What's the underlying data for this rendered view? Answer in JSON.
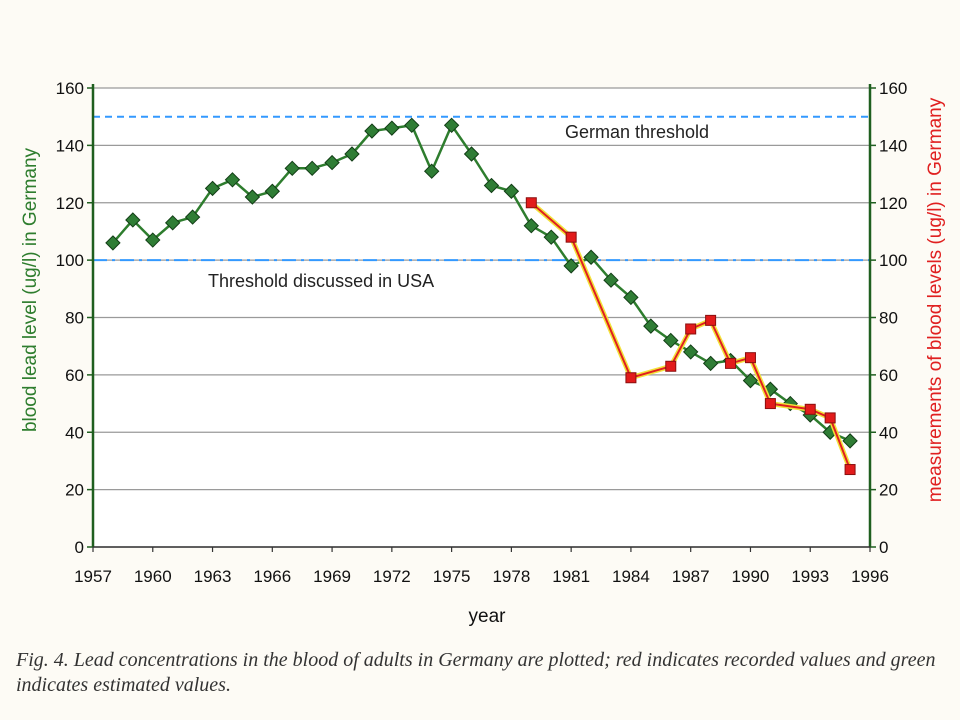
{
  "chart_data": {
    "type": "line",
    "xlabel": "year",
    "ylabel_left": "blood lead level (ug/l) in Germany",
    "ylabel_right": "measurements of blood levels (ug/l) in Germany",
    "xlim": [
      1957,
      1996
    ],
    "ylim": [
      0,
      160
    ],
    "xticks": [
      1957,
      1960,
      1963,
      1966,
      1969,
      1972,
      1975,
      1978,
      1981,
      1984,
      1987,
      1990,
      1993,
      1996
    ],
    "yticks": [
      0,
      20,
      40,
      60,
      80,
      100,
      120,
      140,
      160
    ],
    "grid": true,
    "series": [
      {
        "color": "#2e7d2e",
        "marker": "diamond",
        "points": [
          [
            1958,
            106
          ],
          [
            1959,
            114
          ],
          [
            1960,
            107
          ],
          [
            1961,
            113
          ],
          [
            1962,
            115
          ],
          [
            1963,
            125
          ],
          [
            1964,
            128
          ],
          [
            1965,
            122
          ],
          [
            1966,
            124
          ],
          [
            1967,
            132
          ],
          [
            1968,
            132
          ],
          [
            1969,
            134
          ],
          [
            1970,
            137
          ],
          [
            1971,
            145
          ],
          [
            1972,
            146
          ],
          [
            1973,
            147
          ],
          [
            1974,
            131
          ],
          [
            1975,
            147
          ],
          [
            1976,
            137
          ],
          [
            1977,
            126
          ],
          [
            1978,
            124
          ],
          [
            1979,
            112
          ],
          [
            1980,
            108
          ],
          [
            1981,
            98
          ],
          [
            1982,
            101
          ],
          [
            1983,
            93
          ],
          [
            1984,
            87
          ],
          [
            1985,
            77
          ],
          [
            1986,
            72
          ],
          [
            1987,
            68
          ],
          [
            1988,
            64
          ],
          [
            1989,
            65
          ],
          [
            1990,
            58
          ],
          [
            1991,
            55
          ],
          [
            1992,
            50
          ],
          [
            1993,
            46
          ],
          [
            1994,
            40
          ],
          [
            1995,
            37
          ]
        ]
      },
      {
        "color": "#e02020",
        "marker": "square",
        "points": [
          [
            1979,
            120
          ],
          [
            1981,
            108
          ],
          [
            1984,
            59
          ],
          [
            1986,
            63
          ],
          [
            1987,
            76
          ],
          [
            1988,
            79
          ],
          [
            1989,
            64
          ],
          [
            1990,
            66
          ],
          [
            1991,
            50
          ],
          [
            1993,
            48
          ],
          [
            1994,
            45
          ],
          [
            1995,
            27
          ]
        ]
      }
    ],
    "reference_lines": [
      {
        "y": 150,
        "label": "German threshold",
        "color": "#3399ff",
        "style": "dashed"
      },
      {
        "y": 100,
        "label": "Threshold discussed in USA",
        "color": "#3399ff",
        "style": "dashdot"
      }
    ]
  },
  "caption": "Fig. 4. Lead concentrations in the blood of adults in Germany are plotted; red indicates recorded values and green indicates estimated values."
}
